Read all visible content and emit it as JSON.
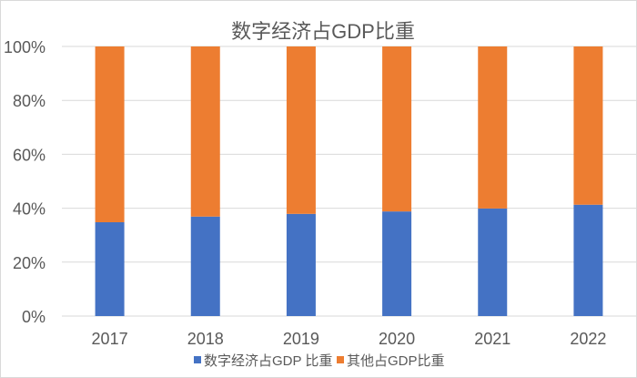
{
  "chart_data": {
    "type": "bar",
    "stacked": true,
    "title": "数字经济占GDP比重",
    "categories": [
      "2017",
      "2018",
      "2019",
      "2020",
      "2021",
      "2022"
    ],
    "series": [
      {
        "name": "数字经济占GDP 比重",
        "color": "#4472C4",
        "values": [
          34.8,
          36.9,
          37.9,
          38.8,
          39.9,
          41.3
        ]
      },
      {
        "name": "其他占GDP比重",
        "color": "#ED7D31",
        "values": [
          65.2,
          63.1,
          62.1,
          61.2,
          60.1,
          58.7
        ]
      }
    ],
    "ylim": [
      0,
      100
    ],
    "yticks": [
      "0%",
      "20%",
      "40%",
      "60%",
      "80%",
      "100%"
    ],
    "xlabel": "",
    "ylabel": "",
    "grid": true,
    "legend": "bottom"
  }
}
